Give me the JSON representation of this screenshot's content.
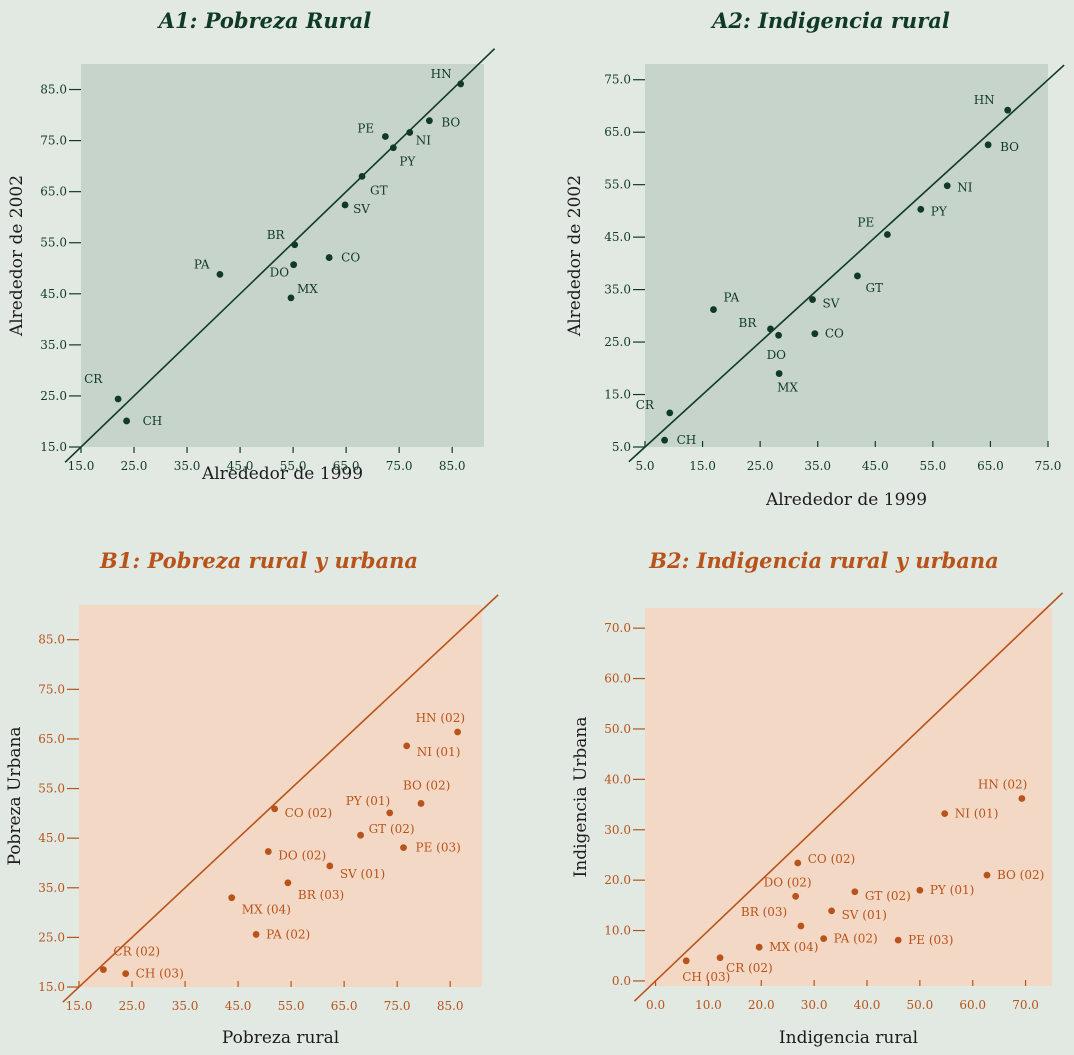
{
  "colors": {
    "background": "#e2e8e2",
    "green_plot_bg": "#c7d4cb",
    "green": "#0f3b24",
    "orange_plot_bg": "#f4d8c6",
    "orange": "#b85419"
  },
  "chart_data": [
    {
      "id": "A1",
      "type": "scatter",
      "title": "A1: Pobreza Rural",
      "xlabel": "Alrededor de 1999",
      "ylabel": "Alrededor de 2002",
      "xlim": [
        15,
        91
      ],
      "ylim": [
        15,
        90
      ],
      "xticks": [
        "15.0",
        "25.0",
        "35.0",
        "45.0",
        "55.0",
        "65.0",
        "75.0",
        "85.0"
      ],
      "yticks": [
        "15.0",
        "25.0",
        "35.0",
        "45.0",
        "55.0",
        "65.0",
        "75.0",
        "85.0"
      ],
      "diagonal": true,
      "grid": false,
      "points": [
        {
          "label": "HN",
          "x": 86.6,
          "y": 86.1
        },
        {
          "label": "BO",
          "x": 80.7,
          "y": 78.9
        },
        {
          "label": "PE",
          "x": 72.4,
          "y": 75.8
        },
        {
          "label": "NI",
          "x": 77.0,
          "y": 76.6
        },
        {
          "label": "PY",
          "x": 73.9,
          "y": 73.6
        },
        {
          "label": "GT",
          "x": 68.0,
          "y": 68.0
        },
        {
          "label": "SV",
          "x": 64.8,
          "y": 62.4
        },
        {
          "label": "BR",
          "x": 55.3,
          "y": 54.6
        },
        {
          "label": "CO",
          "x": 61.8,
          "y": 52.1
        },
        {
          "label": "DO",
          "x": 55.1,
          "y": 50.7
        },
        {
          "label": "PA",
          "x": 41.2,
          "y": 48.8
        },
        {
          "label": "MX",
          "x": 54.6,
          "y": 44.2
        },
        {
          "label": "CR",
          "x": 22.0,
          "y": 24.4
        },
        {
          "label": "CH",
          "x": 23.6,
          "y": 20.1
        }
      ]
    },
    {
      "id": "A2",
      "type": "scatter",
      "title": "A2: Indigencia rural",
      "xlabel": "Alrededor de 1999",
      "ylabel": "Alrededor de 2002",
      "xlim": [
        5,
        75
      ],
      "ylim": [
        5,
        78
      ],
      "xticks": [
        "5.0",
        "15.0",
        "25.0",
        "35.0",
        "45.0",
        "55.0",
        "65.0",
        "75.0"
      ],
      "yticks": [
        "5.0",
        "15.0",
        "25.0",
        "35.0",
        "45.0",
        "55.0",
        "65.0",
        "75.0"
      ],
      "diagonal": true,
      "grid": false,
      "points": [
        {
          "label": "HN",
          "x": 68.0,
          "y": 69.2
        },
        {
          "label": "BO",
          "x": 64.6,
          "y": 62.6
        },
        {
          "label": "NI",
          "x": 57.5,
          "y": 54.8
        },
        {
          "label": "PY",
          "x": 52.9,
          "y": 50.3
        },
        {
          "label": "PE",
          "x": 47.1,
          "y": 45.5
        },
        {
          "label": "GT",
          "x": 41.9,
          "y": 37.6
        },
        {
          "label": "SV",
          "x": 34.1,
          "y": 33.1
        },
        {
          "label": "PA",
          "x": 16.9,
          "y": 31.2
        },
        {
          "label": "BR",
          "x": 26.8,
          "y": 27.5
        },
        {
          "label": "CO",
          "x": 34.5,
          "y": 26.6
        },
        {
          "label": "DO",
          "x": 28.2,
          "y": 26.3
        },
        {
          "label": "MX",
          "x": 28.3,
          "y": 19.0
        },
        {
          "label": "CR",
          "x": 9.3,
          "y": 11.5
        },
        {
          "label": "CH",
          "x": 8.4,
          "y": 6.3
        }
      ]
    },
    {
      "id": "B1",
      "type": "scatter",
      "title": "B1: Pobreza rural y urbana",
      "xlabel": "Pobreza rural",
      "ylabel": "Pobreza Urbana",
      "xlim": [
        15,
        91
      ],
      "ylim": [
        15,
        92
      ],
      "xticks": [
        "15.0",
        "25.0",
        "35.0",
        "45.0",
        "55.0",
        "65.0",
        "75.0",
        "85.0"
      ],
      "yticks": [
        "15.0",
        "25.0",
        "35.0",
        "45.0",
        "55.0",
        "65.0",
        "75.0",
        "85.0"
      ],
      "diagonal": true,
      "grid": false,
      "points": [
        {
          "label": "HN (02)",
          "x": 86.4,
          "y": 66.4
        },
        {
          "label": "NI (01)",
          "x": 76.8,
          "y": 63.6
        },
        {
          "label": "BO (02)",
          "x": 79.5,
          "y": 52.0
        },
        {
          "label": "PY (01)",
          "x": 73.6,
          "y": 50.1
        },
        {
          "label": "CO (02)",
          "x": 51.9,
          "y": 50.9
        },
        {
          "label": "GT (02)",
          "x": 68.1,
          "y": 45.6
        },
        {
          "label": "PE (03)",
          "x": 76.2,
          "y": 43.1
        },
        {
          "label": "DO (02)",
          "x": 50.7,
          "y": 42.3
        },
        {
          "label": "SV (01)",
          "x": 62.3,
          "y": 39.4
        },
        {
          "label": "BR (03)",
          "x": 54.4,
          "y": 36.0
        },
        {
          "label": "MX (04)",
          "x": 43.8,
          "y": 33.0
        },
        {
          "label": "PA (02)",
          "x": 48.4,
          "y": 25.6
        },
        {
          "label": "CR (02)",
          "x": 19.6,
          "y": 18.5
        },
        {
          "label": "CH (03)",
          "x": 23.8,
          "y": 17.7
        }
      ]
    },
    {
      "id": "B2",
      "type": "scatter",
      "title": "B2: Indigencia rural y urbana",
      "xlabel": "Indigencia rural",
      "ylabel": "Indigencia Urbana",
      "xlim": [
        -2,
        75
      ],
      "ylim": [
        -1,
        74
      ],
      "xticks": [
        "0.0",
        "10.0",
        "20.0",
        "30.0",
        "40.0",
        "50.0",
        "60.0",
        "70.0"
      ],
      "yticks": [
        "0.0",
        "10.0",
        "20.0",
        "30.0",
        "40.0",
        "50.0",
        "60.0",
        "70.0"
      ],
      "diagonal": true,
      "grid": false,
      "points": [
        {
          "label": "HN (02)",
          "x": 69.3,
          "y": 36.2
        },
        {
          "label": "NI (01)",
          "x": 54.7,
          "y": 33.2
        },
        {
          "label": "CO (02)",
          "x": 26.9,
          "y": 23.4
        },
        {
          "label": "BO (02)",
          "x": 62.7,
          "y": 21.0
        },
        {
          "label": "PY (01)",
          "x": 50.0,
          "y": 18.0
        },
        {
          "label": "GT (02)",
          "x": 37.7,
          "y": 17.7
        },
        {
          "label": "DO (02)",
          "x": 26.5,
          "y": 16.8
        },
        {
          "label": "SV (01)",
          "x": 33.3,
          "y": 13.9
        },
        {
          "label": "BR (03)",
          "x": 27.5,
          "y": 10.9
        },
        {
          "label": "PA (02)",
          "x": 31.8,
          "y": 8.4
        },
        {
          "label": "PE (03)",
          "x": 45.9,
          "y": 8.1
        },
        {
          "label": "MX (04)",
          "x": 19.6,
          "y": 6.7
        },
        {
          "label": "CR (02)",
          "x": 12.2,
          "y": 4.6
        },
        {
          "label": "CH (03)",
          "x": 5.8,
          "y": 4.0
        }
      ]
    }
  ]
}
